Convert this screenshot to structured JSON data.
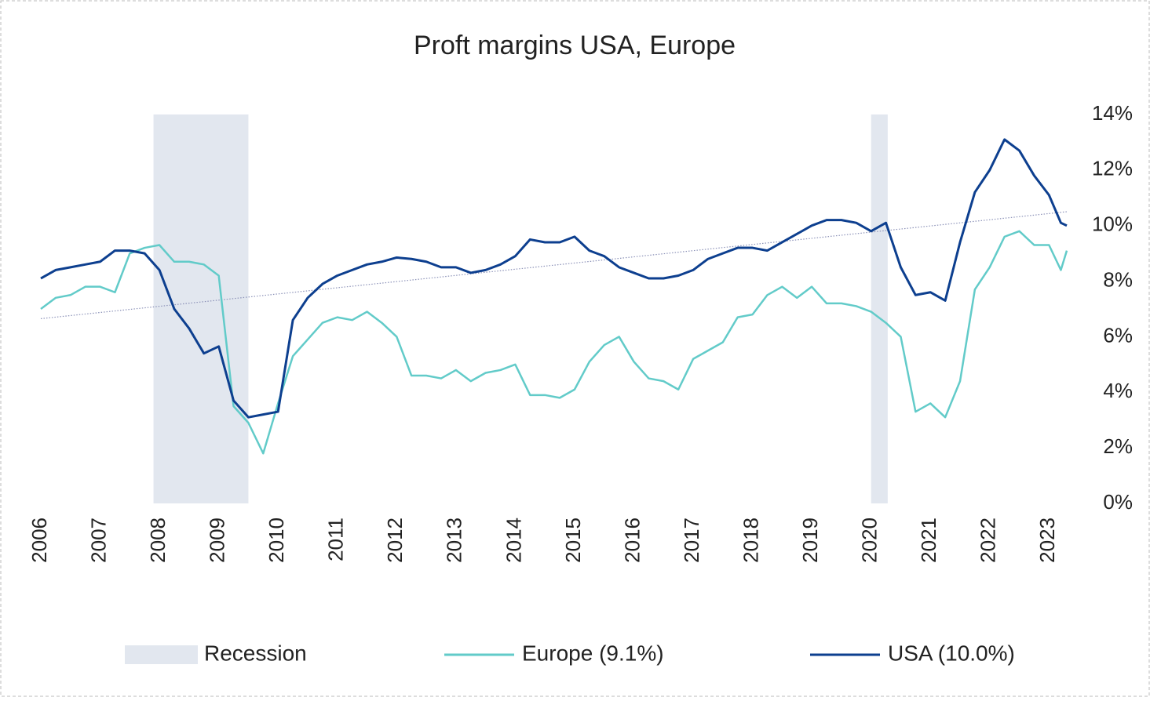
{
  "chart_data": {
    "type": "line",
    "title": "Proft margins USA, Europe",
    "xlim": [
      2006,
      2023.3
    ],
    "xticks": [
      2006,
      2007,
      2008,
      2009,
      2010,
      2011,
      2012,
      2013,
      2014,
      2015,
      2016,
      2017,
      2018,
      2019,
      2020,
      2021,
      2022,
      2023
    ],
    "ylim": [
      0,
      14
    ],
    "yticks": [
      {
        "value": 0,
        "label": "0%"
      },
      {
        "value": 2,
        "label": "2%"
      },
      {
        "value": 4,
        "label": "4%"
      },
      {
        "value": 6,
        "label": "6%"
      },
      {
        "value": 8,
        "label": "8%"
      },
      {
        "value": 10,
        "label": "10%"
      },
      {
        "value": 12,
        "label": "12%"
      },
      {
        "value": 14,
        "label": "14%"
      }
    ],
    "recession": {
      "name": "Recession",
      "color": "#e2e7ef",
      "ranges": [
        [
          2007.9,
          2009.5
        ],
        [
          2020.0,
          2020.28
        ]
      ]
    },
    "trend": {
      "color": "#8c92b8",
      "x": [
        2006,
        2023.3
      ],
      "values": [
        6.65,
        10.5
      ]
    },
    "x": [
      2006.0,
      2006.25,
      2006.5,
      2006.75,
      2007.0,
      2007.25,
      2007.5,
      2007.75,
      2008.0,
      2008.25,
      2008.5,
      2008.75,
      2009.0,
      2009.25,
      2009.5,
      2009.75,
      2010.0,
      2010.25,
      2010.5,
      2010.75,
      2011.0,
      2011.25,
      2011.5,
      2011.75,
      2012.0,
      2012.25,
      2012.5,
      2012.75,
      2013.0,
      2013.25,
      2013.5,
      2013.75,
      2014.0,
      2014.25,
      2014.5,
      2014.75,
      2015.0,
      2015.25,
      2015.5,
      2015.75,
      2016.0,
      2016.25,
      2016.5,
      2016.75,
      2017.0,
      2017.25,
      2017.5,
      2017.75,
      2018.0,
      2018.25,
      2018.5,
      2018.75,
      2019.0,
      2019.25,
      2019.5,
      2019.75,
      2020.0,
      2020.25,
      2020.5,
      2020.75,
      2021.0,
      2021.25,
      2021.5,
      2021.75,
      2022.0,
      2022.25,
      2022.5,
      2022.75,
      2023.0,
      2023.2,
      2023.3
    ],
    "series": [
      {
        "name": "Europe (9.1%)",
        "color": "#62cbc9",
        "values": [
          7.0,
          7.4,
          7.5,
          7.8,
          7.8,
          7.6,
          9.0,
          9.2,
          9.3,
          8.7,
          8.7,
          8.6,
          8.2,
          3.5,
          2.9,
          1.8,
          3.6,
          5.3,
          5.9,
          6.5,
          6.7,
          6.6,
          6.9,
          6.5,
          6.0,
          4.6,
          4.6,
          4.5,
          4.8,
          4.4,
          4.7,
          4.8,
          5.0,
          3.9,
          3.9,
          3.8,
          4.1,
          5.1,
          5.7,
          6.0,
          5.1,
          4.5,
          4.4,
          4.1,
          5.2,
          5.5,
          5.8,
          6.7,
          6.8,
          7.5,
          7.8,
          7.4,
          7.8,
          7.2,
          7.2,
          7.1,
          6.9,
          6.5,
          6.0,
          3.3,
          3.6,
          3.1,
          4.4,
          7.7,
          8.5,
          9.6,
          9.8,
          9.3,
          9.3,
          8.4,
          9.1
        ]
      },
      {
        "name": "USA (10.0%)",
        "color": "#0d3f8f",
        "values": [
          8.1,
          8.4,
          8.5,
          8.6,
          8.7,
          9.1,
          9.1,
          9.0,
          8.4,
          7.0,
          6.3,
          5.4,
          5.65,
          3.7,
          3.1,
          3.2,
          3.3,
          6.6,
          7.4,
          7.9,
          8.2,
          8.4,
          8.6,
          8.7,
          8.85,
          8.8,
          8.7,
          8.5,
          8.5,
          8.3,
          8.4,
          8.6,
          8.9,
          9.5,
          9.4,
          9.4,
          9.6,
          9.1,
          8.9,
          8.5,
          8.3,
          8.1,
          8.1,
          8.2,
          8.4,
          8.8,
          9.0,
          9.2,
          9.2,
          9.1,
          9.4,
          9.7,
          10.0,
          10.2,
          10.2,
          10.1,
          9.8,
          10.1,
          8.5,
          7.5,
          7.6,
          7.3,
          9.4,
          11.2,
          12.0,
          13.1,
          12.7,
          11.8,
          11.1,
          10.1,
          10.0
        ]
      }
    ]
  }
}
